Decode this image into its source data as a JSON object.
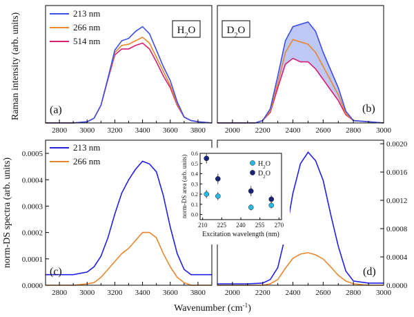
{
  "chart_data": [
    {
      "id": "a",
      "type": "line",
      "label": "(a)",
      "badge": "H",
      "badge_sub": "2",
      "badge_tail": "O",
      "xlim": [
        2700,
        3900
      ],
      "xticks": [
        "2800",
        "3000",
        "3200",
        "3400",
        "3600",
        "3800"
      ],
      "legend": [
        "213 nm",
        "266 nm",
        "514 nm"
      ],
      "series": [
        {
          "name": "213 nm",
          "color": "#3a4ee6",
          "x": [
            2700,
            2900,
            3000,
            3050,
            3100,
            3150,
            3200,
            3250,
            3300,
            3350,
            3400,
            3450,
            3500,
            3550,
            3600,
            3650,
            3700,
            3750,
            3800,
            3900
          ],
          "y": [
            0,
            0,
            0.01,
            0.04,
            0.15,
            0.38,
            0.62,
            0.7,
            0.72,
            0.78,
            0.82,
            0.76,
            0.62,
            0.48,
            0.36,
            0.18,
            0.05,
            0.02,
            0.01,
            0
          ]
        },
        {
          "name": "266 nm",
          "color": "#e8862d",
          "x": [
            2700,
            2900,
            3000,
            3050,
            3100,
            3150,
            3200,
            3250,
            3300,
            3350,
            3400,
            3450,
            3500,
            3550,
            3600,
            3650,
            3700,
            3750,
            3800,
            3900
          ],
          "y": [
            0,
            0,
            0.01,
            0.04,
            0.15,
            0.38,
            0.6,
            0.66,
            0.67,
            0.7,
            0.73,
            0.68,
            0.56,
            0.44,
            0.32,
            0.16,
            0.05,
            0.02,
            0.01,
            0
          ]
        },
        {
          "name": "514 nm",
          "color": "#d91d6e",
          "x": [
            2700,
            2900,
            3000,
            3050,
            3100,
            3150,
            3200,
            3250,
            3300,
            3350,
            3400,
            3450,
            3500,
            3550,
            3600,
            3650,
            3700,
            3750,
            3800,
            3900
          ],
          "y": [
            0,
            0,
            0.01,
            0.04,
            0.15,
            0.37,
            0.58,
            0.63,
            0.63,
            0.66,
            0.68,
            0.63,
            0.52,
            0.4,
            0.3,
            0.15,
            0.05,
            0.02,
            0.01,
            0
          ]
        }
      ]
    },
    {
      "id": "b",
      "type": "line",
      "label": "(b)",
      "badge": "D",
      "badge_sub": "2",
      "badge_tail": "O",
      "xlim": [
        1900,
        3000
      ],
      "xticks": [
        "2000",
        "2200",
        "2400",
        "2600",
        "2800",
        "3000"
      ],
      "series": [
        {
          "name": "213 nm",
          "color": "#3a4ee6",
          "x": [
            1900,
            2150,
            2200,
            2250,
            2300,
            2350,
            2400,
            2450,
            2500,
            2550,
            2600,
            2650,
            2700,
            2750,
            2800,
            2900,
            3000
          ],
          "y": [
            0,
            0,
            0.02,
            0.12,
            0.4,
            0.7,
            0.82,
            0.84,
            0.86,
            0.78,
            0.6,
            0.45,
            0.3,
            0.1,
            0.02,
            0.01,
            0
          ]
        },
        {
          "name": "266 nm",
          "color": "#e8862d",
          "x": [
            1900,
            2150,
            2200,
            2250,
            2300,
            2350,
            2400,
            2450,
            2500,
            2550,
            2600,
            2650,
            2700,
            2750,
            2800,
            2900,
            3000
          ],
          "y": [
            0,
            0,
            0.02,
            0.1,
            0.34,
            0.6,
            0.71,
            0.69,
            0.67,
            0.6,
            0.48,
            0.36,
            0.24,
            0.08,
            0.02,
            0.01,
            0
          ]
        },
        {
          "name": "514 nm",
          "color": "#d91d6e",
          "x": [
            1900,
            2150,
            2200,
            2250,
            2300,
            2350,
            2400,
            2450,
            2500,
            2550,
            2600,
            2650,
            2700,
            2750,
            2800,
            2900,
            3000
          ],
          "y": [
            0,
            0,
            0.02,
            0.09,
            0.3,
            0.5,
            0.55,
            0.52,
            0.52,
            0.46,
            0.37,
            0.28,
            0.19,
            0.07,
            0.02,
            0.01,
            0
          ]
        }
      ]
    },
    {
      "id": "c",
      "type": "line",
      "label": "(c)",
      "xlim": [
        2700,
        3900
      ],
      "xticks": [
        "2800",
        "3000",
        "3200",
        "3400",
        "3600",
        "3800"
      ],
      "ylim": [
        0,
        0.00055
      ],
      "yticks": [
        "0.0000",
        "0.0001",
        "0.0002",
        "0.0003",
        "0.0004",
        "0.0005"
      ],
      "ylabel": "norm-DS spectra (arb. units)",
      "legend": [
        "213 nm",
        "266 nm"
      ],
      "series": [
        {
          "name": "213 nm",
          "color": "#1f1fe6",
          "x": [
            2700,
            2900,
            3000,
            3050,
            3100,
            3150,
            3200,
            3250,
            3300,
            3350,
            3400,
            3450,
            3500,
            3550,
            3600,
            3650,
            3700,
            3750,
            3800,
            3900
          ],
          "y": [
            4e-05,
            4e-05,
            5e-05,
            7e-05,
            0.00011,
            0.00018,
            0.00027,
            0.00035,
            0.0004,
            0.00044,
            0.00047,
            0.00046,
            0.00043,
            0.00034,
            0.00022,
            0.00012,
            6e-05,
            4e-05,
            4e-05,
            4e-05
          ]
        },
        {
          "name": "266 nm",
          "color": "#e8862d",
          "x": [
            2700,
            2900,
            3000,
            3050,
            3100,
            3150,
            3200,
            3250,
            3300,
            3350,
            3400,
            3450,
            3500,
            3550,
            3600,
            3650,
            3700,
            3750,
            3800,
            3900
          ],
          "y": [
            0,
            0,
            5e-06,
            1e-05,
            3e-05,
            6e-05,
            9e-05,
            0.00012,
            0.00014,
            0.00017,
            0.0002,
            0.0002,
            0.00018,
            0.00012,
            7e-05,
            3e-05,
            1e-05,
            0,
            0,
            0
          ]
        }
      ]
    },
    {
      "id": "d",
      "type": "line",
      "label": "(d)",
      "xlim": [
        1900,
        3000
      ],
      "xticks": [
        "2000",
        "2200",
        "2400",
        "2600",
        "2800",
        "3000"
      ],
      "ylim": [
        0,
        0.00205
      ],
      "yticks": [
        "0.0000",
        "0.0004",
        "0.0008",
        "0.0012",
        "0.0016",
        "0.0020"
      ],
      "series": [
        {
          "name": "213 nm",
          "color": "#1f1fe6",
          "x": [
            1900,
            2100,
            2200,
            2250,
            2300,
            2350,
            2400,
            2450,
            2500,
            2550,
            2600,
            2650,
            2700,
            2750,
            2800,
            2900,
            3000
          ],
          "y": [
            2e-05,
            2e-05,
            3e-05,
            8e-05,
            0.00025,
            0.0007,
            0.0013,
            0.00172,
            0.00188,
            0.00176,
            0.00148,
            0.001,
            0.00055,
            0.0002,
            6e-05,
            3e-05,
            3e-05
          ]
        },
        {
          "name": "266 nm",
          "color": "#e8862d",
          "x": [
            1900,
            2100,
            2200,
            2250,
            2300,
            2350,
            2400,
            2450,
            2500,
            2550,
            2600,
            2650,
            2700,
            2750,
            2800,
            2900,
            3000
          ],
          "y": [
            0,
            0,
            0,
            2e-05,
            8e-05,
            0.00024,
            0.00038,
            0.00044,
            0.00046,
            0.00043,
            0.00037,
            0.00026,
            0.00014,
            6e-05,
            2e-05,
            0,
            0
          ]
        }
      ]
    },
    {
      "id": "inset",
      "type": "scatter",
      "xlim": [
        208,
        272
      ],
      "xticks": [
        "210",
        "225",
        "240",
        "255",
        "270"
      ],
      "ylim": [
        -0.05,
        0.6
      ],
      "yticks": [
        "0.0",
        "0.1",
        "0.2",
        "0.3",
        "0.4",
        "0.5",
        "0.6"
      ],
      "xlabel": "Excitation wavelength (nm)",
      "ylabel": "norm-DS area (arb. units)",
      "series": [
        {
          "name": "H2O",
          "legend_main": "H",
          "legend_sub": "2",
          "legend_tail": "O",
          "color": "#2bb8e0",
          "x": [
            213,
            222,
            248,
            264
          ],
          "y": [
            0.2,
            0.18,
            0.07,
            0.09
          ],
          "err": [
            0.04,
            0.04,
            0.03,
            0.03
          ]
        },
        {
          "name": "D2O",
          "legend_main": "D",
          "legend_sub": "2",
          "legend_tail": "O",
          "color": "#1a2478",
          "x": [
            213,
            222,
            248,
            264
          ],
          "y": [
            0.55,
            0.35,
            0.23,
            0.15
          ],
          "err": [
            0.05,
            0.05,
            0.05,
            0.04
          ]
        }
      ]
    }
  ],
  "labels": {
    "top_ylabel": "Raman intensity (arb. units)",
    "xlabel_main": "Wavenumber (cm",
    "xlabel_sup": "-1",
    "xlabel_tail": ")"
  }
}
